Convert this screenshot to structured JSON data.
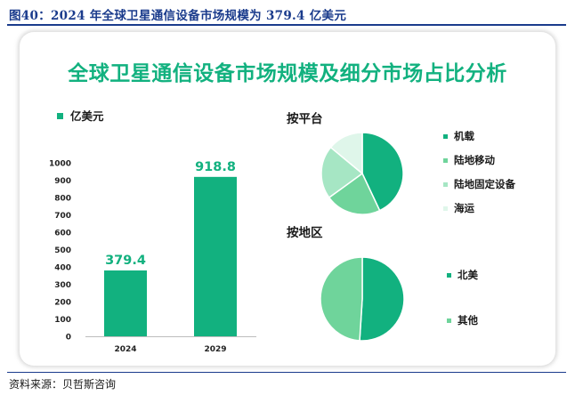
{
  "caption": "图40：2024 年全球卫星通信设备市场规模为 379.4 亿美元",
  "source": "资料来源：贝哲斯咨询",
  "panel_title": "全球卫星通信设备市场规模及细分市场占比分析",
  "colors": {
    "green_dark": "#12b17f",
    "green_mid": "#6fd49b",
    "green_light": "#a6e6c4",
    "green_pale": "#dff6ea",
    "caption_blue": "#1a3b8c"
  },
  "chart_data": [
    {
      "type": "bar",
      "title": "",
      "legend": "亿美元",
      "categories": [
        "2024",
        "2029"
      ],
      "values": [
        379.4,
        918.8
      ],
      "value_labels": [
        "379.4",
        "918.8"
      ],
      "ylim": [
        0,
        1000
      ],
      "yticks": [
        "0",
        "100",
        "200",
        "300",
        "400",
        "500",
        "600",
        "700",
        "800",
        "900",
        "1000"
      ],
      "xlabel": "",
      "ylabel": ""
    },
    {
      "type": "pie",
      "title": "按平台",
      "labels": [
        "机载",
        "陆地移动",
        "陆地固定设备",
        "海运"
      ],
      "values": [
        43,
        22,
        21,
        14
      ]
    },
    {
      "type": "pie",
      "title": "按地区",
      "labels": [
        "北美",
        "其他"
      ],
      "values": [
        51,
        49
      ]
    }
  ]
}
